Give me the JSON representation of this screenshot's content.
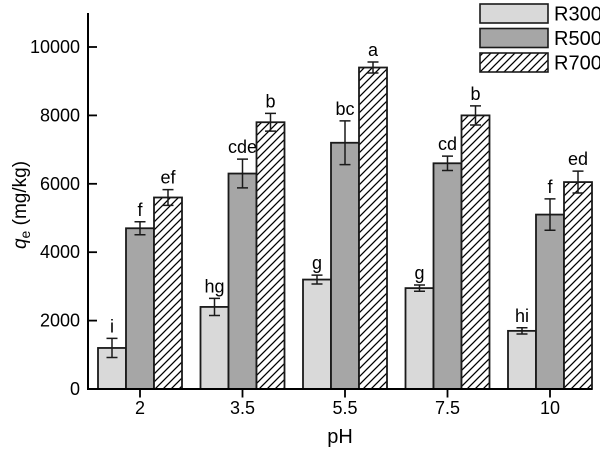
{
  "figure": {
    "background": "#ffffff",
    "axis_color": "#000000"
  },
  "chart_data": {
    "type": "bar",
    "title": "",
    "xlabel": "pH",
    "ylabel": "qe (mg/kg)",
    "ylabel_parts": {
      "symbol": "q",
      "subscript": "e",
      "units": " (mg/kg)"
    },
    "categories": [
      "2",
      "3.5",
      "5.5",
      "7.5",
      "10"
    ],
    "series": [
      {
        "name": "R300",
        "fill": "#d9d9d9",
        "hatch": false,
        "values": [
          1200,
          2400,
          3200,
          2950,
          1700
        ],
        "errors": [
          280,
          250,
          130,
          90,
          90
        ],
        "letters": [
          "i",
          "hg",
          "g",
          "g",
          "hi"
        ]
      },
      {
        "name": "R500",
        "fill": "#a6a6a6",
        "hatch": false,
        "values": [
          4700,
          6300,
          7200,
          6600,
          5100
        ],
        "errors": [
          190,
          420,
          640,
          210,
          460
        ],
        "letters": [
          "f",
          "cde",
          "bc",
          "cd",
          "f"
        ]
      },
      {
        "name": "R700",
        "fill": "#ffffff",
        "hatch": true,
        "values": [
          5600,
          7800,
          9400,
          8000,
          6050
        ],
        "errors": [
          230,
          260,
          160,
          280,
          320
        ],
        "letters": [
          "ef",
          "b",
          "a",
          "b",
          "ed"
        ]
      }
    ],
    "yticks": [
      0,
      2000,
      4000,
      6000,
      8000,
      10000
    ],
    "ylim": [
      0,
      10000
    ],
    "grid": false,
    "error_bars": true,
    "annotations": "significance-letters",
    "legend": {
      "position": "top-right",
      "entries": [
        "R300",
        "R500",
        "R700"
      ]
    }
  }
}
